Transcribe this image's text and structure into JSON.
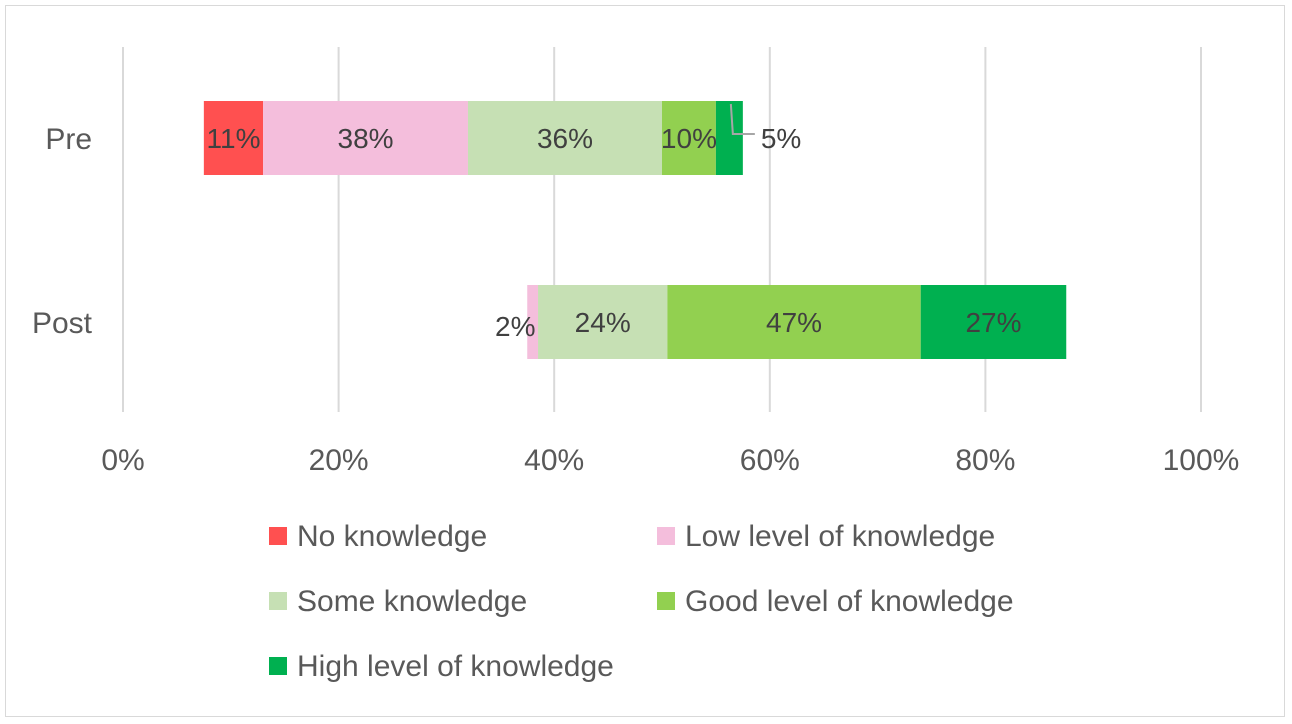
{
  "chart_data": {
    "type": "bar",
    "orientation": "horizontal",
    "stacked": true,
    "categories": [
      "Pre",
      "Post"
    ],
    "series": [
      {
        "name": "No knowledge",
        "color": "#ff5050",
        "offset": [
          7.5,
          37.5
        ],
        "values": [
          5.5,
          0
        ],
        "labels": [
          "11%",
          ""
        ]
      },
      {
        "name": "Low level of knowledge",
        "color": "#f4bedc",
        "values": [
          19,
          1
        ],
        "labels": [
          "38%",
          "2%"
        ]
      },
      {
        "name": "Some knowledge",
        "color": "#c6e0b4",
        "values": [
          18,
          12
        ],
        "labels": [
          "36%",
          "24%"
        ]
      },
      {
        "name": "Good level of knowledge",
        "color": "#92d050",
        "values": [
          5,
          23.5
        ],
        "labels": [
          "10%",
          "47%"
        ]
      },
      {
        "name": "High level of knowledge",
        "color": "#00b050",
        "values": [
          2.5,
          13.5
        ],
        "labels": [
          "5%",
          "27%"
        ]
      }
    ],
    "xlim": [
      0,
      100
    ],
    "xticks": [
      "0%",
      "20%",
      "40%",
      "60%",
      "80%",
      "100%"
    ],
    "grid": true,
    "legend_position": "bottom"
  }
}
